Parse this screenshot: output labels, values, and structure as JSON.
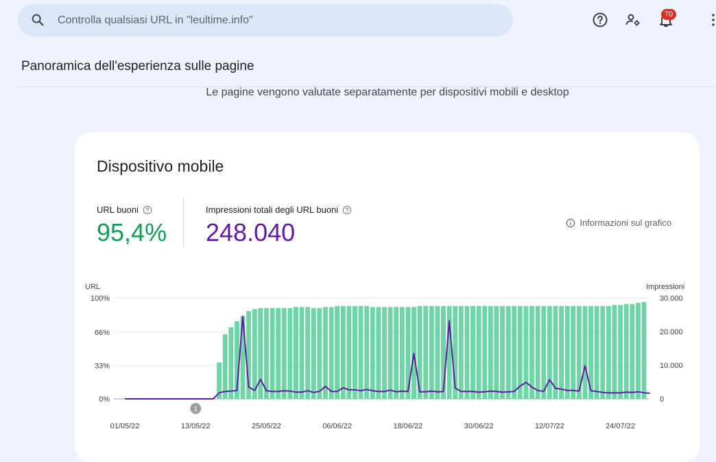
{
  "search": {
    "placeholder": "Controlla qualsiasi URL in \"leultime.info\""
  },
  "topbar": {
    "notifications_count": "70",
    "icons": [
      "help-icon",
      "account-settings-icon",
      "notifications-bell-icon",
      "apps-grid-icon"
    ]
  },
  "page": {
    "title": "Panoramica dell'esperienza sulle pagine",
    "subtitle": "Le pagine vengono valutate separatamente per dispositivi mobili e desktop"
  },
  "card": {
    "title": "Dispositivo mobile",
    "metric1": {
      "label": "URL buoni",
      "value": "95,4%",
      "color": "#0f9d58"
    },
    "metric2": {
      "label": "Impressioni totali degli URL buoni",
      "value": "248.040",
      "color": "#5f1ba8"
    },
    "chart_info": "Informazioni sul grafico"
  },
  "chart_data": {
    "type": "bar",
    "left_axis": {
      "label": "URL",
      "ticks": [
        "0%",
        "33%",
        "66%",
        "100%"
      ],
      "range": [
        0,
        100
      ]
    },
    "right_axis": {
      "label": "Impressioni",
      "ticks": [
        "0",
        "10.000",
        "20.000",
        "30.000"
      ],
      "range": [
        0,
        30000
      ]
    },
    "x_tick_labels": [
      "01/05/22",
      "13/05/22",
      "25/05/22",
      "06/06/22",
      "18/06/22",
      "30/06/22",
      "12/07/22",
      "24/07/22"
    ],
    "annotation": "1",
    "colors": {
      "bars": "#6fd4a6",
      "line": "#5f1ba8"
    },
    "series": [
      {
        "values": [
          0,
          0,
          0,
          0,
          0,
          0,
          0,
          0,
          0,
          0,
          0,
          0,
          0,
          0,
          0,
          0,
          36,
          64,
          71,
          77,
          82,
          87,
          89,
          90,
          90,
          90,
          90,
          90,
          90,
          91,
          91,
          91,
          90,
          90,
          91,
          91,
          92,
          92,
          92,
          92,
          92,
          92,
          91,
          91,
          91,
          91,
          91,
          91,
          91,
          91,
          92,
          92,
          92,
          92,
          92,
          92,
          92,
          92,
          92,
          92,
          92,
          92,
          92,
          92,
          92,
          92,
          92,
          92,
          92,
          92,
          92,
          92,
          92,
          92,
          92,
          92,
          92,
          92,
          92,
          92,
          92,
          92,
          92,
          93,
          93,
          94,
          94,
          95,
          96
        ]
      },
      {
        "values": [
          0,
          0,
          0,
          0,
          0,
          0,
          0,
          0,
          0,
          0,
          0,
          0,
          0,
          0,
          0,
          0,
          1800,
          2200,
          2300,
          2500,
          24500,
          3500,
          2500,
          5800,
          2400,
          2200,
          2200,
          2400,
          2300,
          2000,
          2000,
          2400,
          1900,
          2200,
          3700,
          2200,
          2200,
          3300,
          2700,
          2700,
          2400,
          2800,
          2400,
          2200,
          2200,
          2600,
          2100,
          2300,
          2200,
          13500,
          2100,
          2100,
          2300,
          2100,
          2200,
          23200,
          3200,
          2200,
          2200,
          2200,
          2000,
          2100,
          2300,
          2200,
          2000,
          2100,
          2200,
          3800,
          4900,
          3500,
          2500,
          2200,
          5700,
          3100,
          2900,
          2500,
          2500,
          2300,
          9800,
          2400,
          2200,
          1900,
          1800,
          1800,
          1800,
          2000,
          1900,
          2100,
          1800,
          1700
        ]
      }
    ]
  }
}
